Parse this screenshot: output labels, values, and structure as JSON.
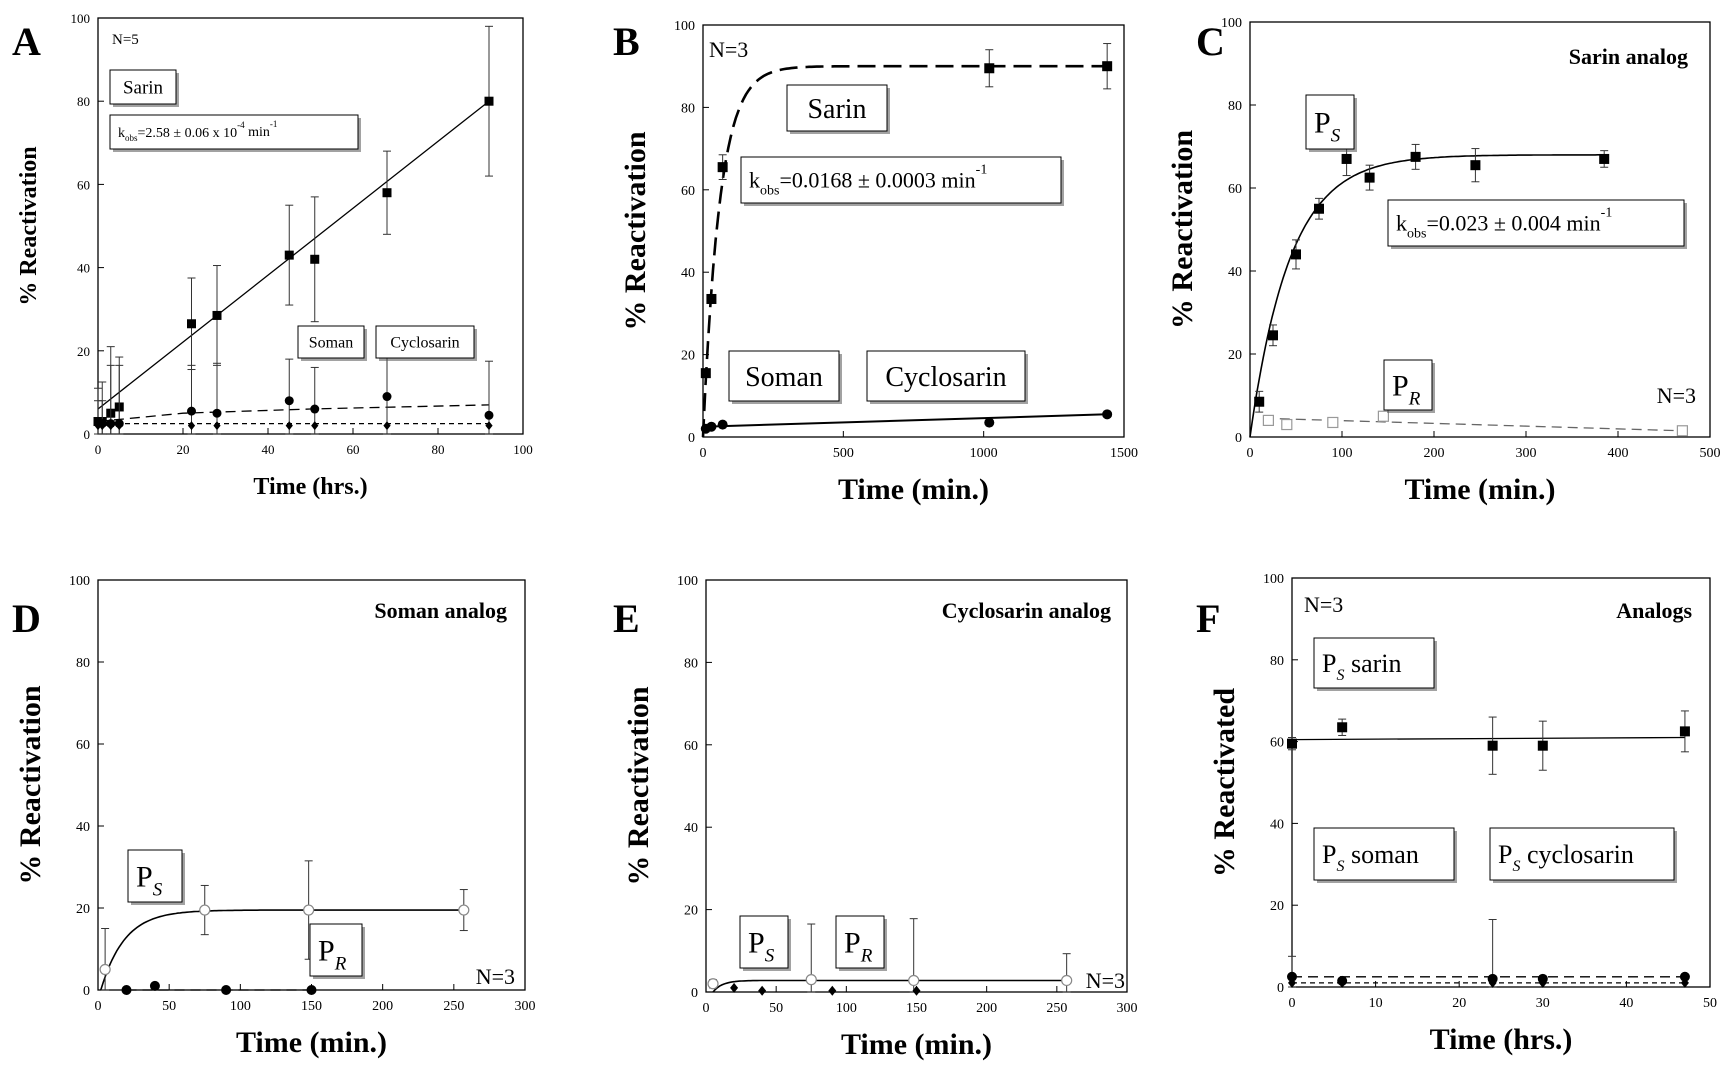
{
  "chart_data": [
    {
      "panel": "A",
      "type": "scatter",
      "xlabel": "Time (hrs.)",
      "ylabel": "% Reactivation",
      "xlim": [
        0,
        100
      ],
      "ylim": [
        0,
        100
      ],
      "xticks": [
        0,
        20,
        40,
        60,
        80,
        100
      ],
      "yticks": [
        0,
        20,
        40,
        60,
        80,
        100
      ],
      "annotations": [
        "N=5",
        "Sarin",
        "Soman",
        "Cyclosarin"
      ],
      "kobs": {
        "main": "k",
        "sub": "obs",
        "rest": "=2.58 ± 0.06 x 10",
        "sup": "-4",
        "unit": " min",
        "unit_sup": "-1"
      },
      "series": [
        {
          "marker": "square",
          "fit": "linear",
          "fit_line": [
            [
              0,
              6
            ],
            [
              92,
              80
            ]
          ],
          "x": [
            0,
            1,
            3,
            5,
            22,
            28,
            45,
            51,
            68,
            92
          ],
          "y": [
            3,
            3,
            5,
            6.5,
            26.5,
            28.5,
            43,
            42,
            58,
            80
          ],
          "err": [
            5,
            5,
            16,
            12,
            11,
            12,
            12,
            15,
            10,
            18
          ]
        },
        {
          "marker": "circle",
          "fit": "dashed",
          "fit_line": [
            [
              0,
              3
            ],
            [
              20,
              5
            ],
            [
              50,
              6
            ],
            [
              92,
              7
            ]
          ],
          "x": [
            0,
            1,
            3,
            5,
            22,
            28,
            45,
            51,
            68,
            92
          ],
          "y": [
            3,
            2.5,
            2.5,
            2.5,
            5.5,
            5,
            8,
            6,
            9,
            4.5
          ],
          "err": [
            8,
            10,
            14,
            14,
            11,
            12,
            10,
            10,
            13,
            13
          ]
        },
        {
          "marker": "diamond",
          "fit": "dotted",
          "fit_line": [
            [
              0,
              2.5
            ],
            [
              92,
              2.5
            ]
          ],
          "x": [
            0,
            1,
            3,
            5,
            22,
            28,
            45,
            51,
            68,
            92
          ],
          "y": [
            2,
            2,
            2,
            2,
            2,
            2,
            2,
            2,
            2,
            2
          ],
          "err": [
            0,
            0,
            0,
            0,
            0,
            0,
            0,
            0,
            0,
            0
          ]
        }
      ]
    },
    {
      "panel": "B",
      "type": "scatter",
      "xlabel": "Time (min.)",
      "ylabel": "% Reactivation",
      "xlim": [
        0,
        1500
      ],
      "ylim": [
        0,
        100
      ],
      "xticks": [
        0,
        500,
        1000,
        1500
      ],
      "yticks": [
        0,
        20,
        40,
        60,
        80,
        100
      ],
      "annotations": [
        "N=3",
        "Sarin",
        "Soman",
        "Cyclosarin"
      ],
      "kobs": {
        "main": "k",
        "sub": "obs",
        "rest": "=0.0168 ± 0.0003 min",
        "sup": "-1"
      },
      "series": [
        {
          "marker": "square",
          "fit": "exp-dashed",
          "plateau": 90,
          "k": 0.0168,
          "x": [
            10,
            30,
            70,
            1020,
            1440
          ],
          "y": [
            15.5,
            33.5,
            65.5,
            89.5,
            90
          ],
          "err": [
            0,
            0,
            3,
            4.5,
            5.5
          ]
        },
        {
          "marker": "circle",
          "fit": "solid",
          "fit_line": [
            [
              0,
              2.5
            ],
            [
              1440,
              5.5
            ]
          ],
          "x": [
            10,
            30,
            70,
            1020,
            1440
          ],
          "y": [
            2,
            2.5,
            3,
            3.5,
            5.5
          ],
          "err": [
            0,
            0,
            0,
            0,
            0
          ]
        }
      ]
    },
    {
      "panel": "C",
      "type": "scatter",
      "xlabel": "Time (min.)",
      "ylabel": "% Reactivation",
      "xlim": [
        0,
        500
      ],
      "ylim": [
        0,
        100
      ],
      "xticks": [
        0,
        100,
        200,
        300,
        400,
        500
      ],
      "yticks": [
        0,
        20,
        40,
        60,
        80,
        100
      ],
      "annotations": [
        "Sarin analog",
        "N=3"
      ],
      "labels": {
        "PS": {
          "base": "P",
          "sub": "S"
        },
        "PR": {
          "base": "P",
          "sub": "R"
        }
      },
      "kobs": {
        "main": "k",
        "sub": "obs",
        "rest": "=0.023 ± 0.004 min",
        "sup": "-1"
      },
      "series": [
        {
          "marker": "square",
          "fit": "exp",
          "plateau": 68,
          "k": 0.023,
          "t0": 0,
          "x": [
            10,
            25,
            50,
            75,
            105,
            130,
            180,
            245,
            385
          ],
          "y": [
            8.5,
            24.5,
            44,
            55,
            67,
            62.5,
            67.5,
            65.5,
            67
          ],
          "err": [
            2.5,
            2.5,
            3.5,
            2.5,
            4,
            3,
            3,
            4,
            2
          ]
        },
        {
          "marker": "open-square",
          "fit": "dashed",
          "fit_line": [
            [
              15,
              4.5
            ],
            [
              470,
              1.5
            ]
          ],
          "x": [
            20,
            40,
            90,
            145,
            470
          ],
          "y": [
            4,
            3,
            3.5,
            5,
            1.5
          ],
          "err": [
            0,
            0,
            0,
            0,
            0
          ]
        }
      ]
    },
    {
      "panel": "D",
      "type": "scatter",
      "xlabel": "Time (min.)",
      "ylabel": "% Reactivation",
      "xlim": [
        0,
        300
      ],
      "ylim": [
        0,
        100
      ],
      "xticks": [
        0,
        50,
        100,
        150,
        200,
        250,
        300
      ],
      "yticks": [
        0,
        20,
        40,
        60,
        80,
        100
      ],
      "annotations": [
        "Soman analog",
        "N=3"
      ],
      "labels": {
        "PS": {
          "base": "P",
          "sub": "S"
        },
        "PR": {
          "base": "P",
          "sub": "R"
        }
      },
      "series": [
        {
          "marker": "open-circle",
          "fit": "exp",
          "plateau": 19.5,
          "k": 0.06,
          "t0": 2,
          "x": [
            5,
            75,
            148,
            257
          ],
          "y": [
            5,
            19.5,
            19.5,
            19.5
          ],
          "err": [
            10,
            6,
            12,
            5
          ]
        },
        {
          "marker": "circle",
          "fit": "dashed",
          "fit_line": [
            [
              20,
              0
            ],
            [
              150,
              0
            ]
          ],
          "x": [
            20,
            40,
            90,
            150
          ],
          "y": [
            0,
            1,
            0,
            0
          ],
          "err": [
            0,
            0,
            0,
            0
          ]
        }
      ]
    },
    {
      "panel": "E",
      "type": "scatter",
      "xlabel": "Time (min.)",
      "ylabel": "% Reactivation",
      "xlim": [
        0,
        300
      ],
      "ylim": [
        0,
        100
      ],
      "xticks": [
        0,
        50,
        100,
        150,
        200,
        250,
        300
      ],
      "yticks": [
        0,
        20,
        40,
        60,
        80,
        100
      ],
      "annotations": [
        "Cyclosarin analog",
        "N=3"
      ],
      "labels": {
        "PS": {
          "base": "P",
          "sub": "S"
        },
        "PR": {
          "base": "P",
          "sub": "R"
        }
      },
      "series": [
        {
          "marker": "open-circle",
          "fit": "exp",
          "plateau": 2.8,
          "k": 0.15,
          "t0": 5,
          "x": [
            5,
            75,
            148,
            257
          ],
          "y": [
            2,
            3,
            2.8,
            2.8
          ],
          "err": [
            1,
            13.5,
            15,
            6.5
          ]
        },
        {
          "marker": "diamond",
          "fit": "none",
          "x": [
            20,
            40,
            90,
            150
          ],
          "y": [
            1,
            0.3,
            0.3,
            0.3
          ],
          "err": [
            0,
            0,
            0,
            0
          ]
        }
      ]
    },
    {
      "panel": "F",
      "type": "scatter",
      "xlabel": "Time (hrs.)",
      "ylabel": "% Reactivated",
      "xlim": [
        0,
        50
      ],
      "ylim": [
        0,
        100
      ],
      "xticks": [
        0,
        10,
        20,
        30,
        40,
        50
      ],
      "yticks": [
        0,
        20,
        40,
        60,
        80,
        100
      ],
      "annotations": [
        "N=3",
        "Analogs"
      ],
      "labels": {
        "PS_sarin": {
          "base": "P",
          "sub": "S",
          "rest": " sarin"
        },
        "PS_soman": {
          "base": "P",
          "sub": "S",
          "rest": " soman"
        },
        "PS_cyclosarin": {
          "base": "P",
          "sub": "S",
          "rest": " cyclosarin"
        }
      },
      "series": [
        {
          "marker": "square",
          "fit": "linear",
          "fit_line": [
            [
              0,
              60.5
            ],
            [
              47,
              61
            ]
          ],
          "x": [
            0,
            6,
            24,
            30,
            47
          ],
          "y": [
            59.5,
            63.5,
            59,
            59,
            62.5
          ],
          "err": [
            1.5,
            2,
            7,
            6,
            5
          ]
        },
        {
          "marker": "circle",
          "fit": "dashed",
          "fit_line": [
            [
              0,
              2.5
            ],
            [
              47,
              2.5
            ]
          ],
          "x": [
            0,
            6,
            24,
            30,
            47
          ],
          "y": [
            2.5,
            1.5,
            2,
            2,
            2.5
          ],
          "err": [
            5,
            0,
            14.5,
            0,
            0
          ]
        },
        {
          "marker": "diamond",
          "fit": "dotted",
          "fit_line": [
            [
              0,
              1
            ],
            [
              47,
              1
            ]
          ],
          "x": [
            0,
            6,
            24,
            30,
            47
          ],
          "y": [
            1,
            1,
            1,
            1,
            1
          ],
          "err": [
            0,
            0,
            0,
            0,
            0
          ]
        }
      ]
    }
  ]
}
